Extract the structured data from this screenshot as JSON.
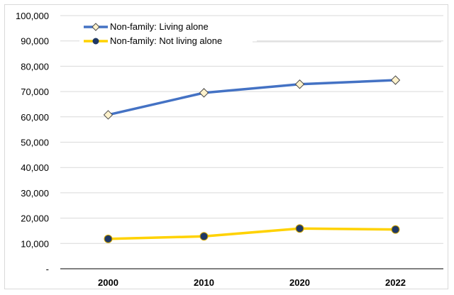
{
  "chart_data": {
    "type": "line",
    "categories": [
      "2000",
      "2010",
      "2020",
      "2022"
    ],
    "series": [
      {
        "name": "Non-family: Living alone",
        "values": [
          60800,
          69500,
          72900,
          74500
        ],
        "color": "#4472C4",
        "marker": "diamond",
        "marker_fill": "#FFF2CC"
      },
      {
        "name": "Non-family: Not living alone",
        "values": [
          11800,
          12800,
          15900,
          15500
        ],
        "color": "#FFD200",
        "marker": "circle",
        "marker_fill": "#1F3864"
      }
    ],
    "y_ticks": [
      "-",
      "10,000",
      "20,000",
      "30,000",
      "40,000",
      "50,000",
      "60,000",
      "70,000",
      "80,000",
      "90,000",
      "100,000"
    ],
    "ylim": [
      0,
      100000
    ],
    "grid": true,
    "legend_position": "top-left"
  }
}
